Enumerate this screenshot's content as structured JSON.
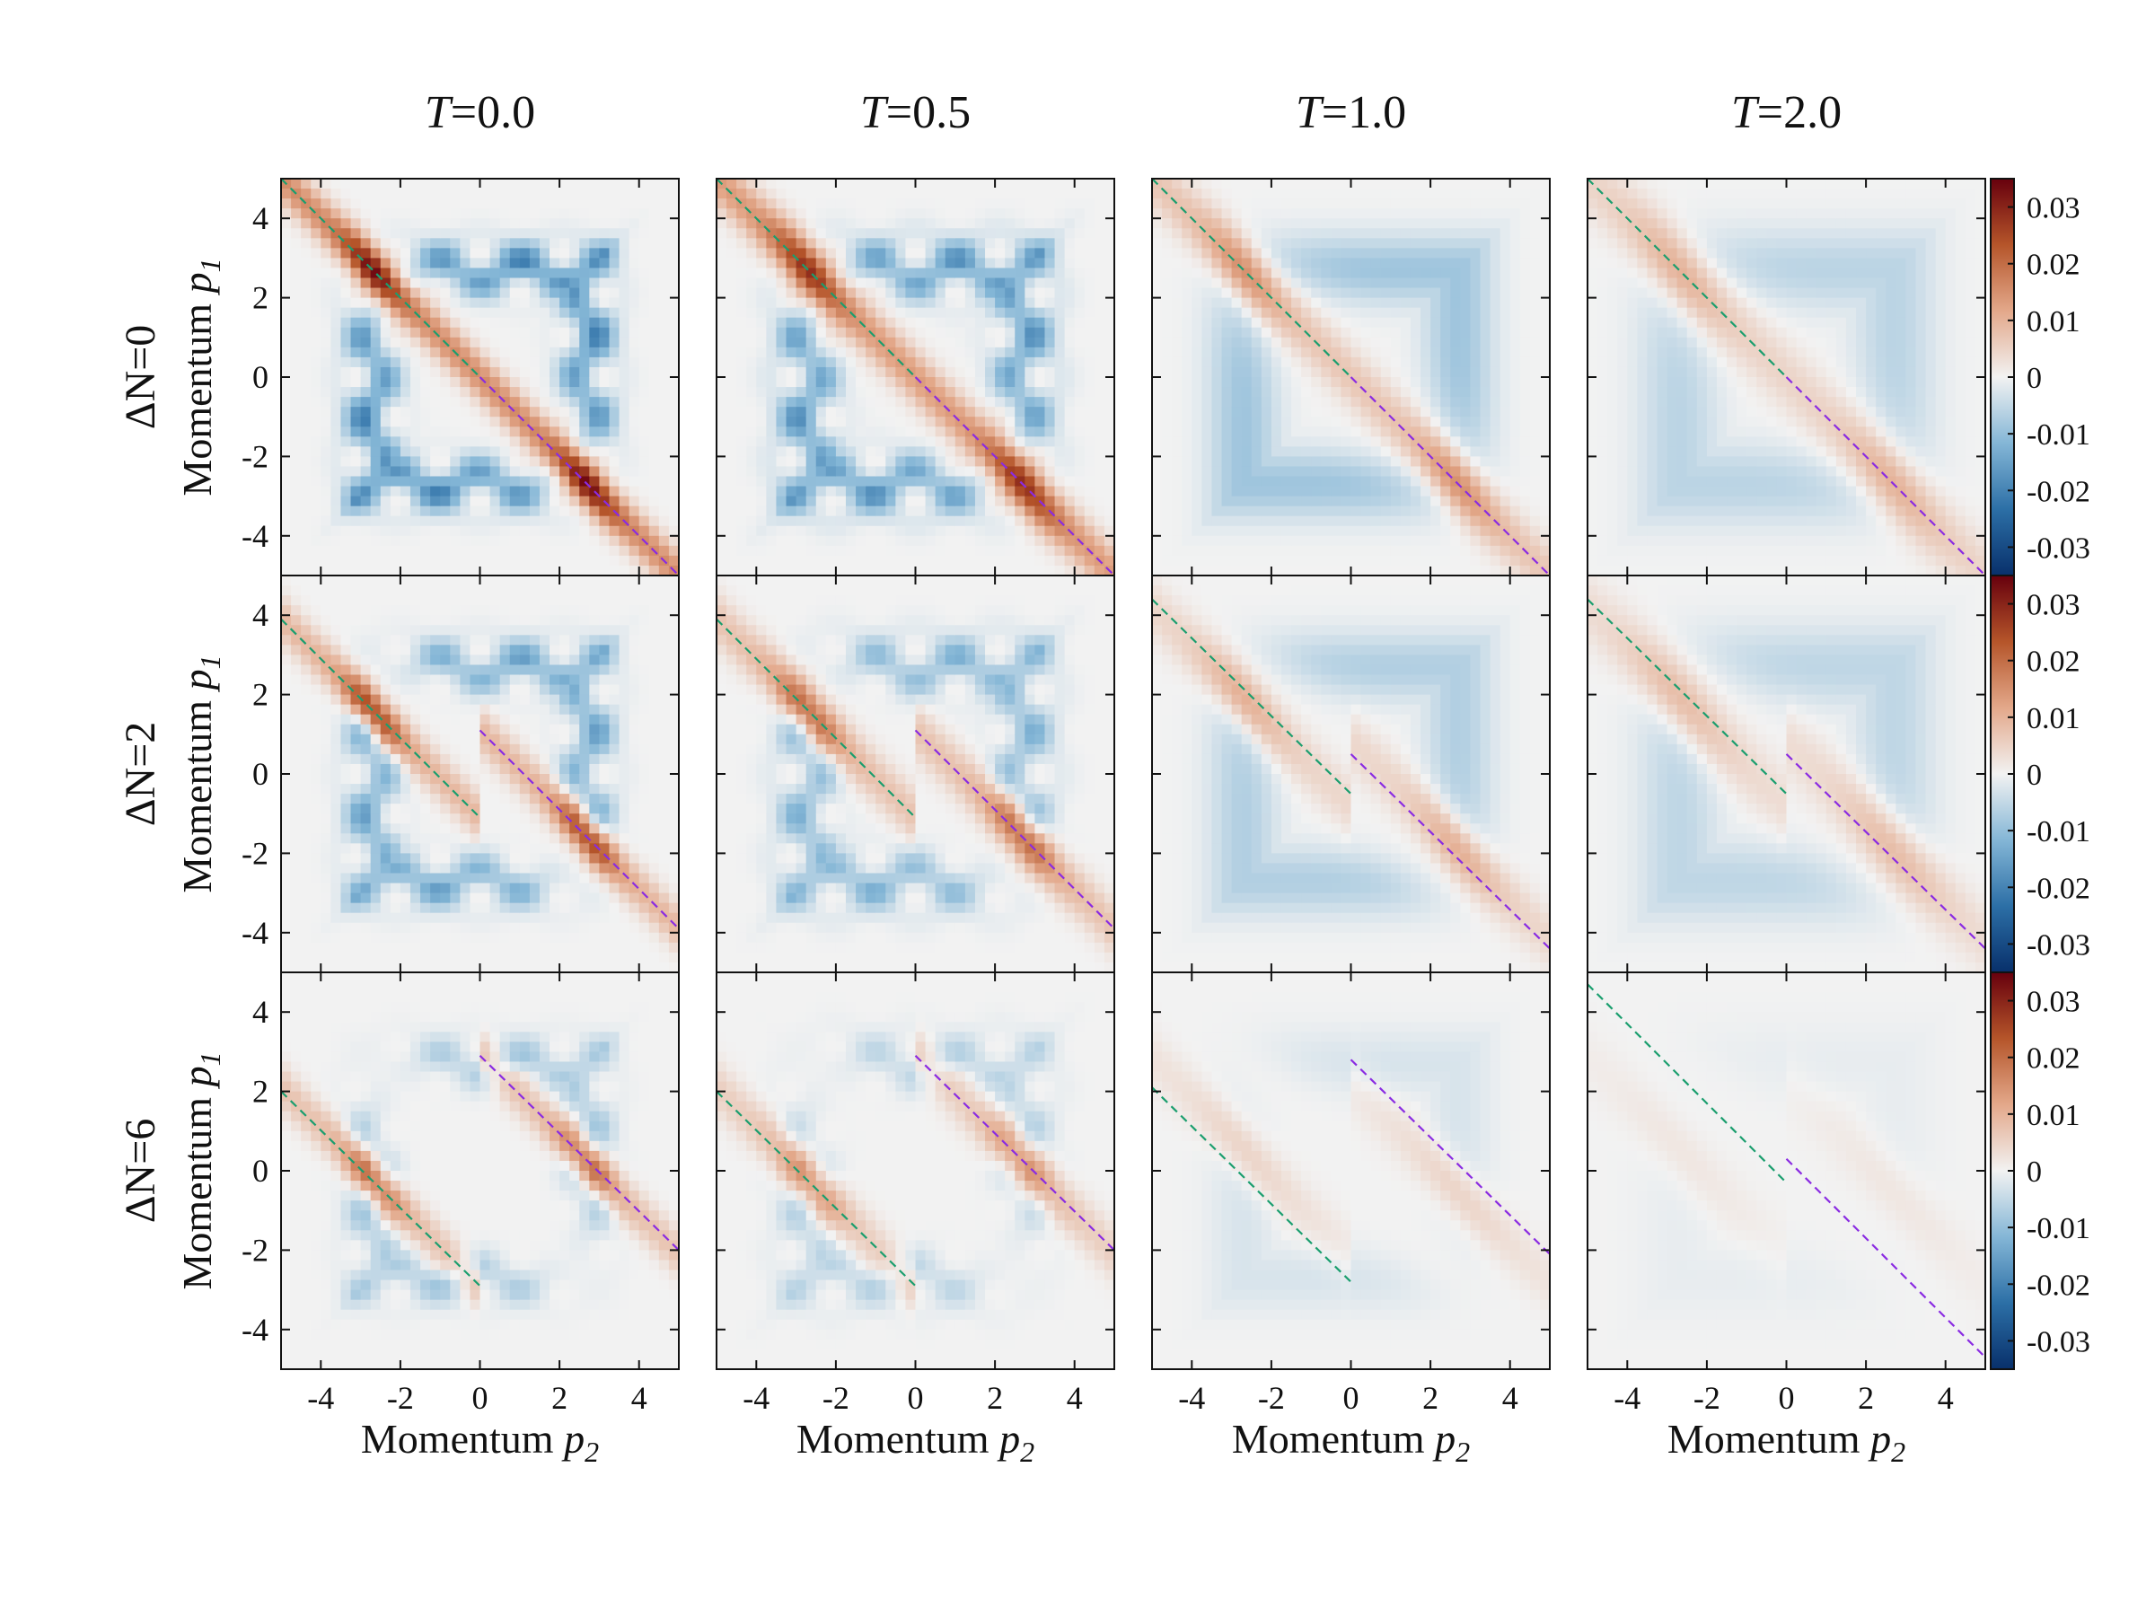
{
  "chart_data": {
    "type": "heatmap",
    "columns": [
      {
        "title_var": "T",
        "title_val": "=0.0",
        "T": 0.0
      },
      {
        "title_var": "T",
        "title_val": "=0.5",
        "T": 0.5
      },
      {
        "title_var": "T",
        "title_val": "=1.0",
        "T": 1.0
      },
      {
        "title_var": "T",
        "title_val": "=2.0",
        "T": 2.0
      }
    ],
    "rows": [
      {
        "label": "ΔN=0",
        "dN": 0
      },
      {
        "label": "ΔN=2",
        "dN": 2
      },
      {
        "label": "ΔN=6",
        "dN": 6
      }
    ],
    "xlabel": {
      "text": "Momentum ",
      "sub": "p",
      "subscript": "2"
    },
    "ylabel": {
      "text": "Momentum ",
      "sub": "p",
      "subscript": "1"
    },
    "xlim": [
      -5,
      5
    ],
    "ylim": [
      -5,
      5
    ],
    "x_ticks": [
      -4,
      -2,
      0,
      2,
      4
    ],
    "y_ticks": [
      -4,
      -2,
      0,
      2,
      4
    ],
    "x_tick_labels": [
      "-4",
      "-2",
      "0",
      "2",
      "4"
    ],
    "y_tick_labels": [
      "-4",
      "-2",
      "0",
      "2",
      "4"
    ],
    "colorbar": {
      "range": [
        -0.035,
        0.035
      ],
      "ticks": [
        0.03,
        0.02,
        0.01,
        0,
        -0.01,
        -0.02,
        -0.03
      ],
      "tick_labels": [
        "0.03",
        "0.02",
        "0.01",
        "0",
        "-0.01",
        "-0.02",
        "-0.03"
      ],
      "colormap": [
        "#08306b",
        "#2c6fa6",
        "#84b6d6",
        "#f2f2f2",
        "#e3a88a",
        "#b5552a",
        "#67000d"
      ]
    },
    "dashed_lines": {
      "left_color": "#1a9e6e",
      "right_color": "#8a2be2",
      "panels": [
        [
          {
            "left": [
              [
                -5,
                5
              ],
              [
                0,
                0
              ]
            ],
            "right": [
              [
                0,
                0
              ],
              [
                5,
                -5
              ]
            ]
          },
          {
            "left": [
              [
                -5,
                5
              ],
              [
                0,
                0
              ]
            ],
            "right": [
              [
                0,
                0
              ],
              [
                5,
                -5
              ]
            ]
          },
          {
            "left": [
              [
                -5,
                5
              ],
              [
                0,
                0
              ]
            ],
            "right": [
              [
                0,
                0
              ],
              [
                5,
                -5
              ]
            ]
          },
          {
            "left": [
              [
                -5,
                5
              ],
              [
                0,
                0
              ]
            ],
            "right": [
              [
                0,
                0
              ],
              [
                5,
                -5
              ]
            ]
          }
        ],
        [
          {
            "left": [
              [
                -5,
                3.9
              ],
              [
                0,
                -1.1
              ]
            ],
            "right": [
              [
                0,
                1.1
              ],
              [
                5,
                -3.9
              ]
            ]
          },
          {
            "left": [
              [
                -5,
                3.9
              ],
              [
                0,
                -1.1
              ]
            ],
            "right": [
              [
                0,
                1.1
              ],
              [
                5,
                -3.9
              ]
            ]
          },
          {
            "left": [
              [
                -5,
                4.4
              ],
              [
                0,
                -0.5
              ]
            ],
            "right": [
              [
                0,
                0.5
              ],
              [
                5,
                -4.4
              ]
            ]
          },
          {
            "left": [
              [
                -5,
                4.4
              ],
              [
                0,
                -0.5
              ]
            ],
            "right": [
              [
                0,
                0.5
              ],
              [
                5,
                -4.4
              ]
            ]
          }
        ],
        [
          {
            "left": [
              [
                -5,
                2.0
              ],
              [
                0,
                -2.9
              ]
            ],
            "right": [
              [
                0,
                2.9
              ],
              [
                5,
                -2.0
              ]
            ]
          },
          {
            "left": [
              [
                -5,
                2.0
              ],
              [
                0,
                -2.9
              ]
            ],
            "right": [
              [
                0,
                2.9
              ],
              [
                5,
                -2.0
              ]
            ]
          },
          {
            "left": [
              [
                -5,
                2.1
              ],
              [
                0,
                -2.8
              ]
            ],
            "right": [
              [
                0,
                2.8
              ],
              [
                5,
                -2.1
              ]
            ]
          },
          {
            "left": [
              [
                -5,
                4.7
              ],
              [
                0,
                -0.3
              ]
            ],
            "right": [
              [
                0,
                0.3
              ],
              [
                5,
                -4.7
              ]
            ]
          }
        ]
      ]
    },
    "panel_amplitude": [
      [
        1.0,
        0.85,
        0.45,
        0.3
      ],
      [
        0.75,
        0.6,
        0.35,
        0.28
      ],
      [
        0.6,
        0.45,
        0.2,
        0.08
      ]
    ]
  }
}
